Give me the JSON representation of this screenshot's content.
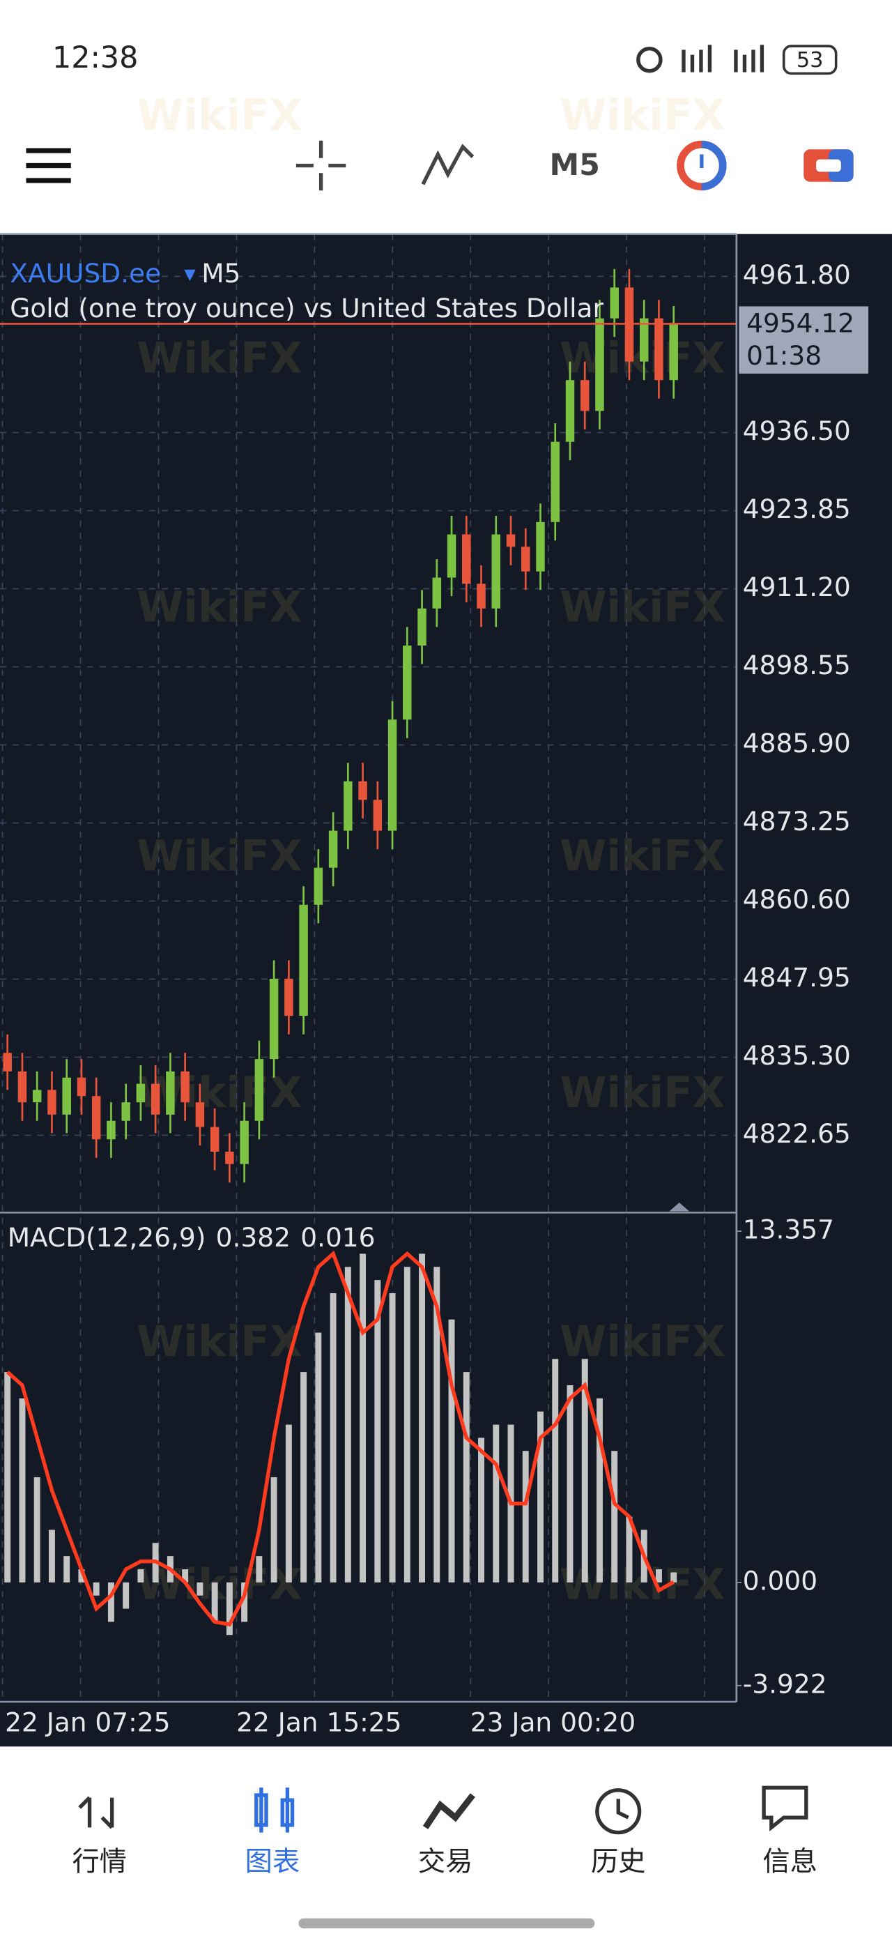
{
  "status_bar": {
    "time": "12:38",
    "battery": "53"
  },
  "toolbar": {
    "timeframe": "M5"
  },
  "watermark": "WikiFX",
  "chart_data": [
    {
      "type": "candlestick",
      "symbol": "XAUUSD.ee",
      "timeframe": "M5",
      "description": "Gold (one troy ounce) vs United States Dollar",
      "up_color": "#7dc242",
      "down_color": "#e8553a",
      "last_price_time": "01:38",
      "grid": true,
      "open": [
        4836,
        4833,
        4828,
        4830,
        4826,
        4832,
        4829,
        4822,
        4825,
        4828,
        4831,
        4826,
        4833,
        4828,
        4824,
        4820,
        4818,
        4825,
        4835,
        4848,
        4842,
        4860,
        4866,
        4872,
        4880,
        4877,
        4872,
        4890,
        4902,
        4908,
        4913,
        4920,
        4912,
        4908,
        4920,
        4918,
        4914,
        4922,
        4935,
        4945,
        4940,
        4955,
        4960,
        4948,
        4955,
        4945
      ],
      "high": [
        4839,
        4836,
        4833,
        4833,
        4835,
        4835,
        4832,
        4828,
        4831,
        4834,
        4834,
        4836,
        4836,
        4831,
        4827,
        4823,
        4828,
        4838,
        4851,
        4851,
        4863,
        4869,
        4875,
        4883,
        4883,
        4880,
        4893,
        4905,
        4911,
        4916,
        4923,
        4923,
        4915,
        4923,
        4923,
        4921,
        4925,
        4938,
        4948,
        4948,
        4958,
        4963,
        4963,
        4958,
        4958,
        4957
      ],
      "low": [
        4830,
        4825,
        4825,
        4823,
        4823,
        4826,
        4819,
        4819,
        4822,
        4825,
        4823,
        4823,
        4825,
        4821,
        4817,
        4815,
        4815,
        4822,
        4832,
        4839,
        4839,
        4857,
        4863,
        4869,
        4874,
        4869,
        4869,
        4887,
        4899,
        4905,
        4910,
        4909,
        4905,
        4905,
        4915,
        4911,
        4911,
        4919,
        4932,
        4937,
        4937,
        4952,
        4945,
        4945,
        4942,
        4942
      ],
      "close": [
        4833,
        4828,
        4830,
        4826,
        4832,
        4829,
        4822,
        4825,
        4828,
        4831,
        4826,
        4833,
        4828,
        4824,
        4820,
        4818,
        4825,
        4835,
        4848,
        4842,
        4860,
        4866,
        4872,
        4880,
        4877,
        4872,
        4890,
        4902,
        4908,
        4913,
        4920,
        4912,
        4908,
        4920,
        4918,
        4914,
        4922,
        4935,
        4945,
        4940,
        4955,
        4960,
        4948,
        4955,
        4945,
        4954.12
      ],
      "ylim": [
        4810.34,
        4968.66
      ],
      "yticks": [
        {
          "value": 4961.8,
          "label": "4961.80"
        },
        {
          "value": 4936.5,
          "label": "4936.50"
        },
        4923.85,
        {
          "value": 4911.2,
          "label": "4911.20"
        },
        4898.55,
        {
          "value": 4885.9,
          "label": "4885.90"
        },
        4873.25,
        {
          "value": 4860.6,
          "label": "4860.60"
        },
        4847.95,
        {
          "value": 4835.3,
          "label": "4835.30"
        },
        4822.65
      ]
    },
    {
      "type": "macd",
      "title": "MACD(12,26,9)",
      "grid": true,
      "series": [
        {
          "color": "#c4c4c4",
          "values": [
            8,
            7,
            4,
            2,
            1,
            0.5,
            -0.5,
            -1.5,
            -1,
            0.5,
            1.5,
            1,
            0.5,
            -0.5,
            -1.5,
            -2,
            -1.5,
            1,
            4,
            6,
            8,
            9.5,
            11,
            12,
            12.5,
            11.5,
            11,
            12,
            12.5,
            12,
            10,
            8,
            5.5,
            6,
            6,
            5,
            6.5,
            8.5,
            7.5,
            8.5,
            7,
            5,
            2.5,
            2,
            0.5,
            0.382
          ]
        },
        {
          "color": "#ff3b1f",
          "values": [
            8,
            7.5,
            5.5,
            3.5,
            2,
            0.5,
            -1,
            -0.5,
            0.5,
            0.8,
            0.8,
            0.5,
            0,
            -0.8,
            -1.5,
            -1.6,
            -0.5,
            2,
            5.5,
            8.5,
            10.5,
            12,
            12.5,
            11,
            9.5,
            10,
            12,
            12.5,
            12,
            10.5,
            7.5,
            5.5,
            5,
            4.5,
            3,
            3,
            5.5,
            6,
            7,
            7.5,
            5.5,
            3,
            2.5,
            1,
            -0.3,
            0.016
          ]
        }
      ],
      "ylim": [
        -4.54,
        14.02
      ],
      "yticks": [
        13.357,
        {
          "value": 0,
          "label": "0.000"
        },
        -3.922
      ],
      "x_labels": [
        "22 Jan 07:25",
        "22 Jan 15:25",
        "23 Jan 00:20"
      ]
    }
  ],
  "nav": {
    "items": [
      "行情",
      "图表",
      "交易",
      "历史",
      "信息"
    ],
    "active": 1
  }
}
